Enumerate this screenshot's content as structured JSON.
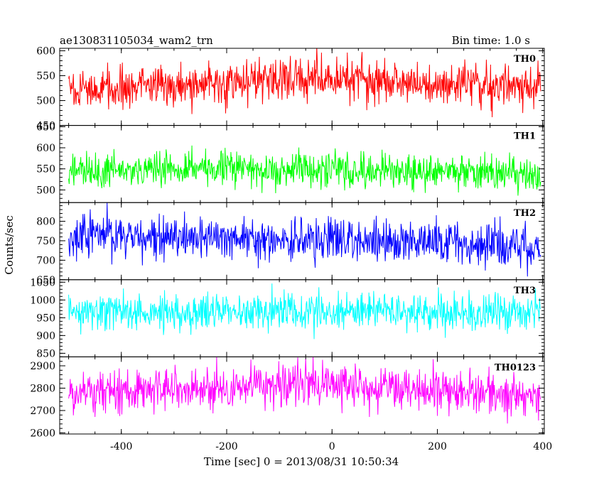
{
  "header": {
    "title": "ae130831105034_wam2_trn",
    "bin_time": "Bin time: 1.0 s"
  },
  "chart_data": {
    "type": "line",
    "xlabel": "Time [sec] 0 = 2013/08/31 10:50:34",
    "ylabel": "Counts/sec",
    "xlim": [
      -517,
      403
    ],
    "x_ticks": [
      "-400",
      "-200",
      "0",
      "200",
      "400"
    ],
    "x_tick_values": [
      -400,
      -200,
      0,
      200,
      400
    ],
    "x_range_data": [
      -500,
      396
    ],
    "bin_time_s": 1.0,
    "grid": false,
    "panels": [
      {
        "name": "TH0",
        "color": "#ff0000",
        "ylim": [
          450,
          605
        ],
        "y_ticks": [
          "450",
          "500",
          "550",
          "600"
        ],
        "y_tick_values": [
          450,
          500,
          550,
          600
        ],
        "mean_profile": [
          [
            -500,
            520
          ],
          [
            -300,
            530
          ],
          [
            -100,
            545
          ],
          [
            100,
            538
          ],
          [
            300,
            532
          ],
          [
            396,
            528
          ]
        ],
        "noise_sd": 22
      },
      {
        "name": "TH1",
        "color": "#00ff00",
        "ylim": [
          470,
          653
        ],
        "y_ticks": [
          "500",
          "550",
          "600",
          "650"
        ],
        "y_tick_values": [
          500,
          550,
          600,
          650
        ],
        "mean_profile": [
          [
            -500,
            545
          ],
          [
            -200,
            548
          ],
          [
            100,
            545
          ],
          [
            396,
            540
          ]
        ],
        "noise_sd": 21
      },
      {
        "name": "TH2",
        "color": "#0000ff",
        "ylim": [
          650,
          848
        ],
        "y_ticks": [
          "650",
          "700",
          "750",
          "800"
        ],
        "y_tick_values": [
          650,
          700,
          750,
          800
        ],
        "mean_profile": [
          [
            -500,
            760
          ],
          [
            -200,
            758
          ],
          [
            0,
            752
          ],
          [
            200,
            742
          ],
          [
            396,
            730
          ]
        ],
        "noise_sd": 28
      },
      {
        "name": "TH3",
        "color": "#00ffff",
        "ylim": [
          840,
          1057
        ],
        "y_ticks": [
          "850",
          "900",
          "950",
          "1000",
          "1050"
        ],
        "y_tick_values": [
          850,
          900,
          950,
          1000,
          1050
        ],
        "mean_profile": [
          [
            -500,
            965
          ],
          [
            -100,
            968
          ],
          [
            200,
            966
          ],
          [
            396,
            962
          ]
        ],
        "noise_sd": 27
      },
      {
        "name": "TH0123",
        "color": "#ff00ff",
        "ylim": [
          2595,
          2940
        ],
        "y_ticks": [
          "2600",
          "2700",
          "2800",
          "2900"
        ],
        "y_tick_values": [
          2600,
          2700,
          2800,
          2900
        ],
        "mean_profile": [
          [
            -500,
            2770
          ],
          [
            -300,
            2790
          ],
          [
            -100,
            2815
          ],
          [
            100,
            2800
          ],
          [
            300,
            2780
          ],
          [
            396,
            2770
          ]
        ],
        "noise_sd": 48
      }
    ]
  }
}
